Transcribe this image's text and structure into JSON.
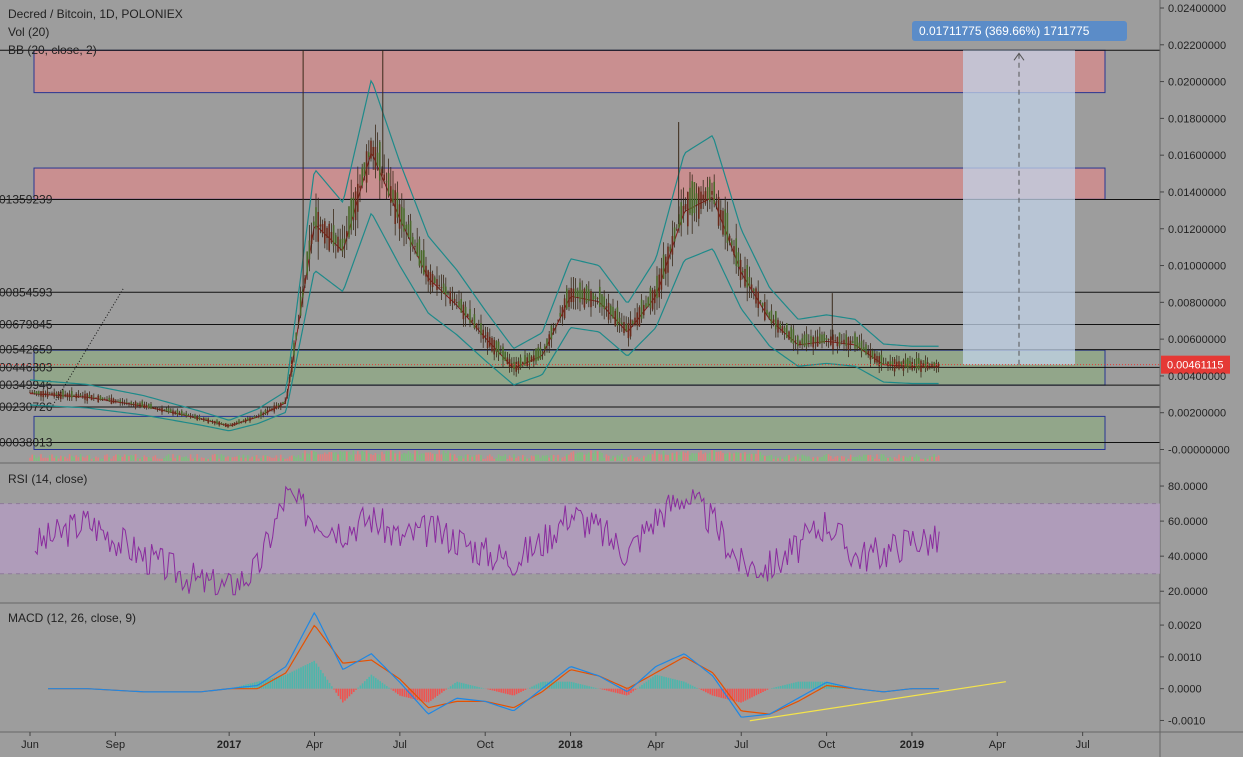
{
  "header": {
    "title": "Decred / Bitcoin, 1D, POLONIEX",
    "vol": "Vol (20)",
    "bb": "BB (20, close, 2)",
    "bb_visible": "BB (20, close, 2)"
  },
  "panes": {
    "rsi_label": "RSI (14, close)",
    "macd_label": "MACD (12, 26, close, 9)"
  },
  "measure": {
    "text": "0.01711775 (369.66%) 1711775"
  },
  "last_price": {
    "label": "0.00461115",
    "value": 0.00461115
  },
  "colors": {
    "background": "#9d9d9d",
    "resistance_zone": "#c98f90",
    "support_zone": "#92a68a",
    "zone_border": "#283593",
    "bb_band": "#1e8a8a",
    "bb_basis": "#8b1a1a",
    "candle": "#3a2a1a",
    "rsi_line": "#8a2b9e",
    "rsi_band": "#b79bc6",
    "macd_line": "#1e88e5",
    "signal_line": "#e65100",
    "trendline": "#f5e44a",
    "measure_fill": "#c2d3e8",
    "measure_label": "#5b8cc8",
    "price_label": "#e53935"
  },
  "chart_data": [
    {
      "type": "line",
      "title": "Decred / Bitcoin, 1D, POLONIEX",
      "x_ticks": [
        "Jun",
        "Sep",
        "2017",
        "Apr",
        "Jul",
        "Oct",
        "2018",
        "Apr",
        "Jul",
        "Oct",
        "2019",
        "Apr",
        "Jul"
      ],
      "y_ticks": [
        "0.02400000",
        "0.02200000",
        "0.02000000",
        "0.01800000",
        "0.01600000",
        "0.01400000",
        "0.01200000",
        "0.01000000",
        "0.00800000",
        "0.00600000",
        "0.00400000",
        "0.00200000",
        "-0.00000000"
      ],
      "ylim": [
        -0.0001,
        0.0246
      ],
      "horizontal_levels": [
        "0.0217",
        "01359239",
        "00854593",
        "00679845",
        "00542659",
        "00446303",
        "00349946",
        "00230726",
        "00038013"
      ],
      "resistance_zones": [
        [
          0.0194,
          0.0217
        ],
        [
          0.0136,
          0.0153
        ]
      ],
      "support_zones": [
        [
          0.0035,
          0.0054
        ],
        [
          0.0,
          0.0018
        ]
      ],
      "x": [
        "2016-06",
        "2016-08",
        "2016-10",
        "2016-12",
        "2017-01",
        "2017-02",
        "2017-03",
        "2017-04",
        "2017-05",
        "2017-06",
        "2017-07",
        "2017-08",
        "2017-09",
        "2017-10",
        "2017-11",
        "2017-12",
        "2018-01",
        "2018-02",
        "2018-03",
        "2018-04",
        "2018-05",
        "2018-06",
        "2018-07",
        "2018-08",
        "2018-09",
        "2018-10",
        "2018-11",
        "2018-12",
        "2019-01",
        "2019-02"
      ],
      "series": [
        {
          "values": [
            0.0031,
            0.0029,
            0.0024,
            0.0017,
            0.0013,
            0.0018,
            0.0026,
            0.0125,
            0.011,
            0.0165,
            0.0128,
            0.0095,
            0.008,
            0.0062,
            0.0045,
            0.0052,
            0.0085,
            0.0082,
            0.0065,
            0.0085,
            0.0132,
            0.014,
            0.0098,
            0.0072,
            0.0058,
            0.006,
            0.0058,
            0.0047,
            0.0046,
            0.0046
          ]
        }
      ]
    },
    {
      "type": "line",
      "title": "RSI (14, close)",
      "y_ticks": [
        "80.0000",
        "60.0000",
        "40.0000",
        "20.0000"
      ],
      "ylim": [
        15,
        92
      ],
      "band": [
        30,
        70
      ],
      "series": [
        {
          "values": [
            45,
            60,
            40,
            25,
            22,
            33,
            75,
            62,
            55,
            62,
            50,
            55,
            50,
            42,
            38,
            48,
            65,
            55,
            42,
            62,
            75,
            60,
            35,
            34,
            45,
            60,
            40,
            42,
            50,
            48
          ]
        }
      ]
    },
    {
      "type": "line",
      "title": "MACD (12, 26, close, 9)",
      "y_ticks": [
        "0.0020",
        "0.0010",
        "0.0000",
        "-0.0010"
      ],
      "ylim": [
        -0.0013,
        0.0026
      ],
      "series": [
        {
          "values": [
            0.0,
            0.0,
            -0.0001,
            -0.0001,
            0.0,
            0.0001,
            0.0007,
            0.0024,
            0.0006,
            0.0011,
            0.0002,
            -0.0008,
            -0.0003,
            -0.0004,
            -0.0007,
            0.0,
            0.0007,
            0.0004,
            -0.0001,
            0.0007,
            0.0011,
            0.0004,
            -0.0009,
            -0.0008,
            -0.0003,
            0.0002,
            0.0,
            -0.0001,
            0.0,
            0.0
          ]
        },
        {
          "values": [
            0.0,
            0.0,
            -0.0001,
            -0.0001,
            0.0,
            0.0,
            0.0005,
            0.002,
            0.0008,
            0.0009,
            0.0003,
            -0.0006,
            -0.0004,
            -0.0004,
            -0.0006,
            -0.0001,
            0.0006,
            0.0004,
            0.0,
            0.0005,
            0.001,
            0.0005,
            -0.0007,
            -0.0008,
            -0.0004,
            0.0001,
            0.0,
            -0.0001,
            0.0,
            0.0
          ]
        }
      ]
    }
  ]
}
